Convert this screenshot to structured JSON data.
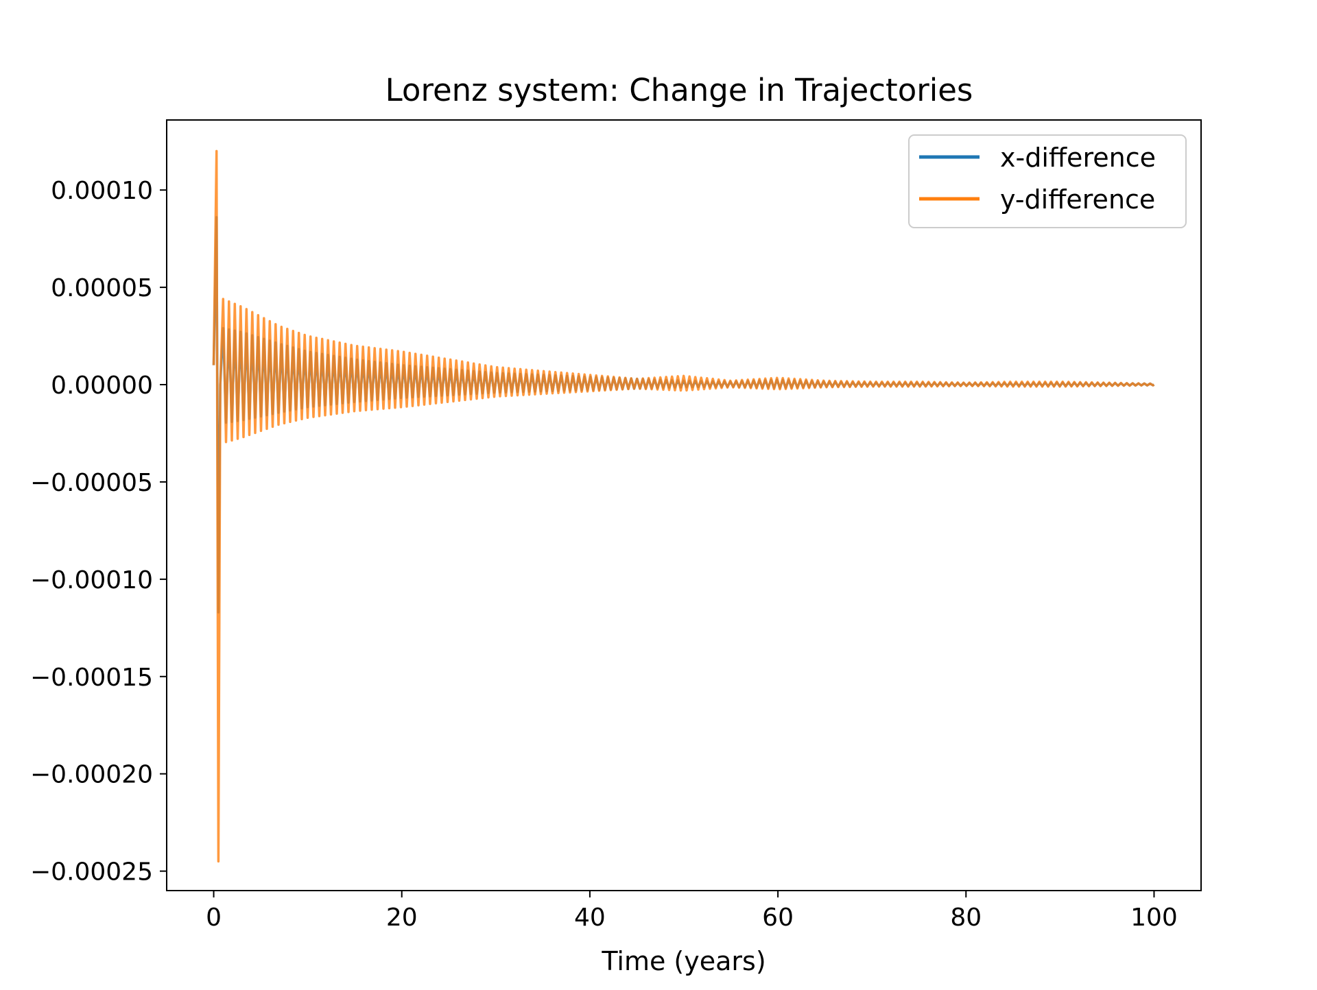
{
  "chart_data": {
    "type": "line",
    "title": "Lorenz system: Change in Trajectories",
    "xlabel": "Time (years)",
    "ylabel": "",
    "xlim": [
      -5,
      105
    ],
    "ylim": [
      -0.00026,
      0.000136
    ],
    "xticks": [
      0,
      20,
      40,
      60,
      80,
      100
    ],
    "xtick_labels": [
      "0",
      "20",
      "40",
      "60",
      "80",
      "100"
    ],
    "yticks": [
      0.0001,
      5e-05,
      0,
      -5e-05,
      -0.0001,
      -0.00015,
      -0.0002,
      -0.00025
    ],
    "ytick_labels": [
      "0.00010",
      "0.00005",
      "0.00000",
      "−0.00005",
      "−0.00010",
      "−0.00015",
      "−0.00020",
      "−0.00025"
    ],
    "grid": false,
    "legend_position": "upper right",
    "series": [
      {
        "name": "x-difference",
        "color": "#1f77b4",
        "x": [
          0,
          0.3,
          0.5,
          1,
          3,
          5,
          7,
          10,
          15,
          20,
          25,
          30,
          35,
          40,
          45,
          50,
          55,
          60,
          65,
          70,
          75,
          80,
          85,
          90,
          95,
          100
        ],
        "envelope": [
          1e-05,
          8.6e-05,
          -0.000117,
          2.9e-05,
          2.7e-05,
          2.4e-05,
          2.1e-05,
          1.7e-05,
          1.3e-05,
          1e-05,
          8e-06,
          6e-06,
          5e-06,
          4e-06,
          3e-06,
          2e-06,
          1.5e-06,
          2.5e-06,
          1.5e-06,
          1e-06,
          1e-06,
          8e-07,
          8e-07,
          1e-06,
          8e-07,
          5e-07
        ]
      },
      {
        "name": "y-difference",
        "color": "#ff7f0e",
        "x": [
          0,
          0.3,
          0.5,
          1,
          3,
          5,
          7,
          10,
          15,
          20,
          25,
          30,
          35,
          40,
          45,
          50,
          55,
          60,
          65,
          70,
          75,
          80,
          85,
          90,
          95,
          100
        ],
        "envelope": [
          1e-05,
          0.00012,
          -0.000245,
          4.4e-05,
          4e-05,
          3.5e-05,
          3e-05,
          2.5e-05,
          2e-05,
          1.7e-05,
          1.3e-05,
          9e-06,
          7e-06,
          5e-06,
          3e-06,
          4.5e-06,
          2e-06,
          3.5e-06,
          2e-06,
          1.5e-06,
          1.5e-06,
          1e-06,
          1.5e-06,
          1.5e-06,
          1e-06,
          5e-07
        ]
      }
    ]
  }
}
